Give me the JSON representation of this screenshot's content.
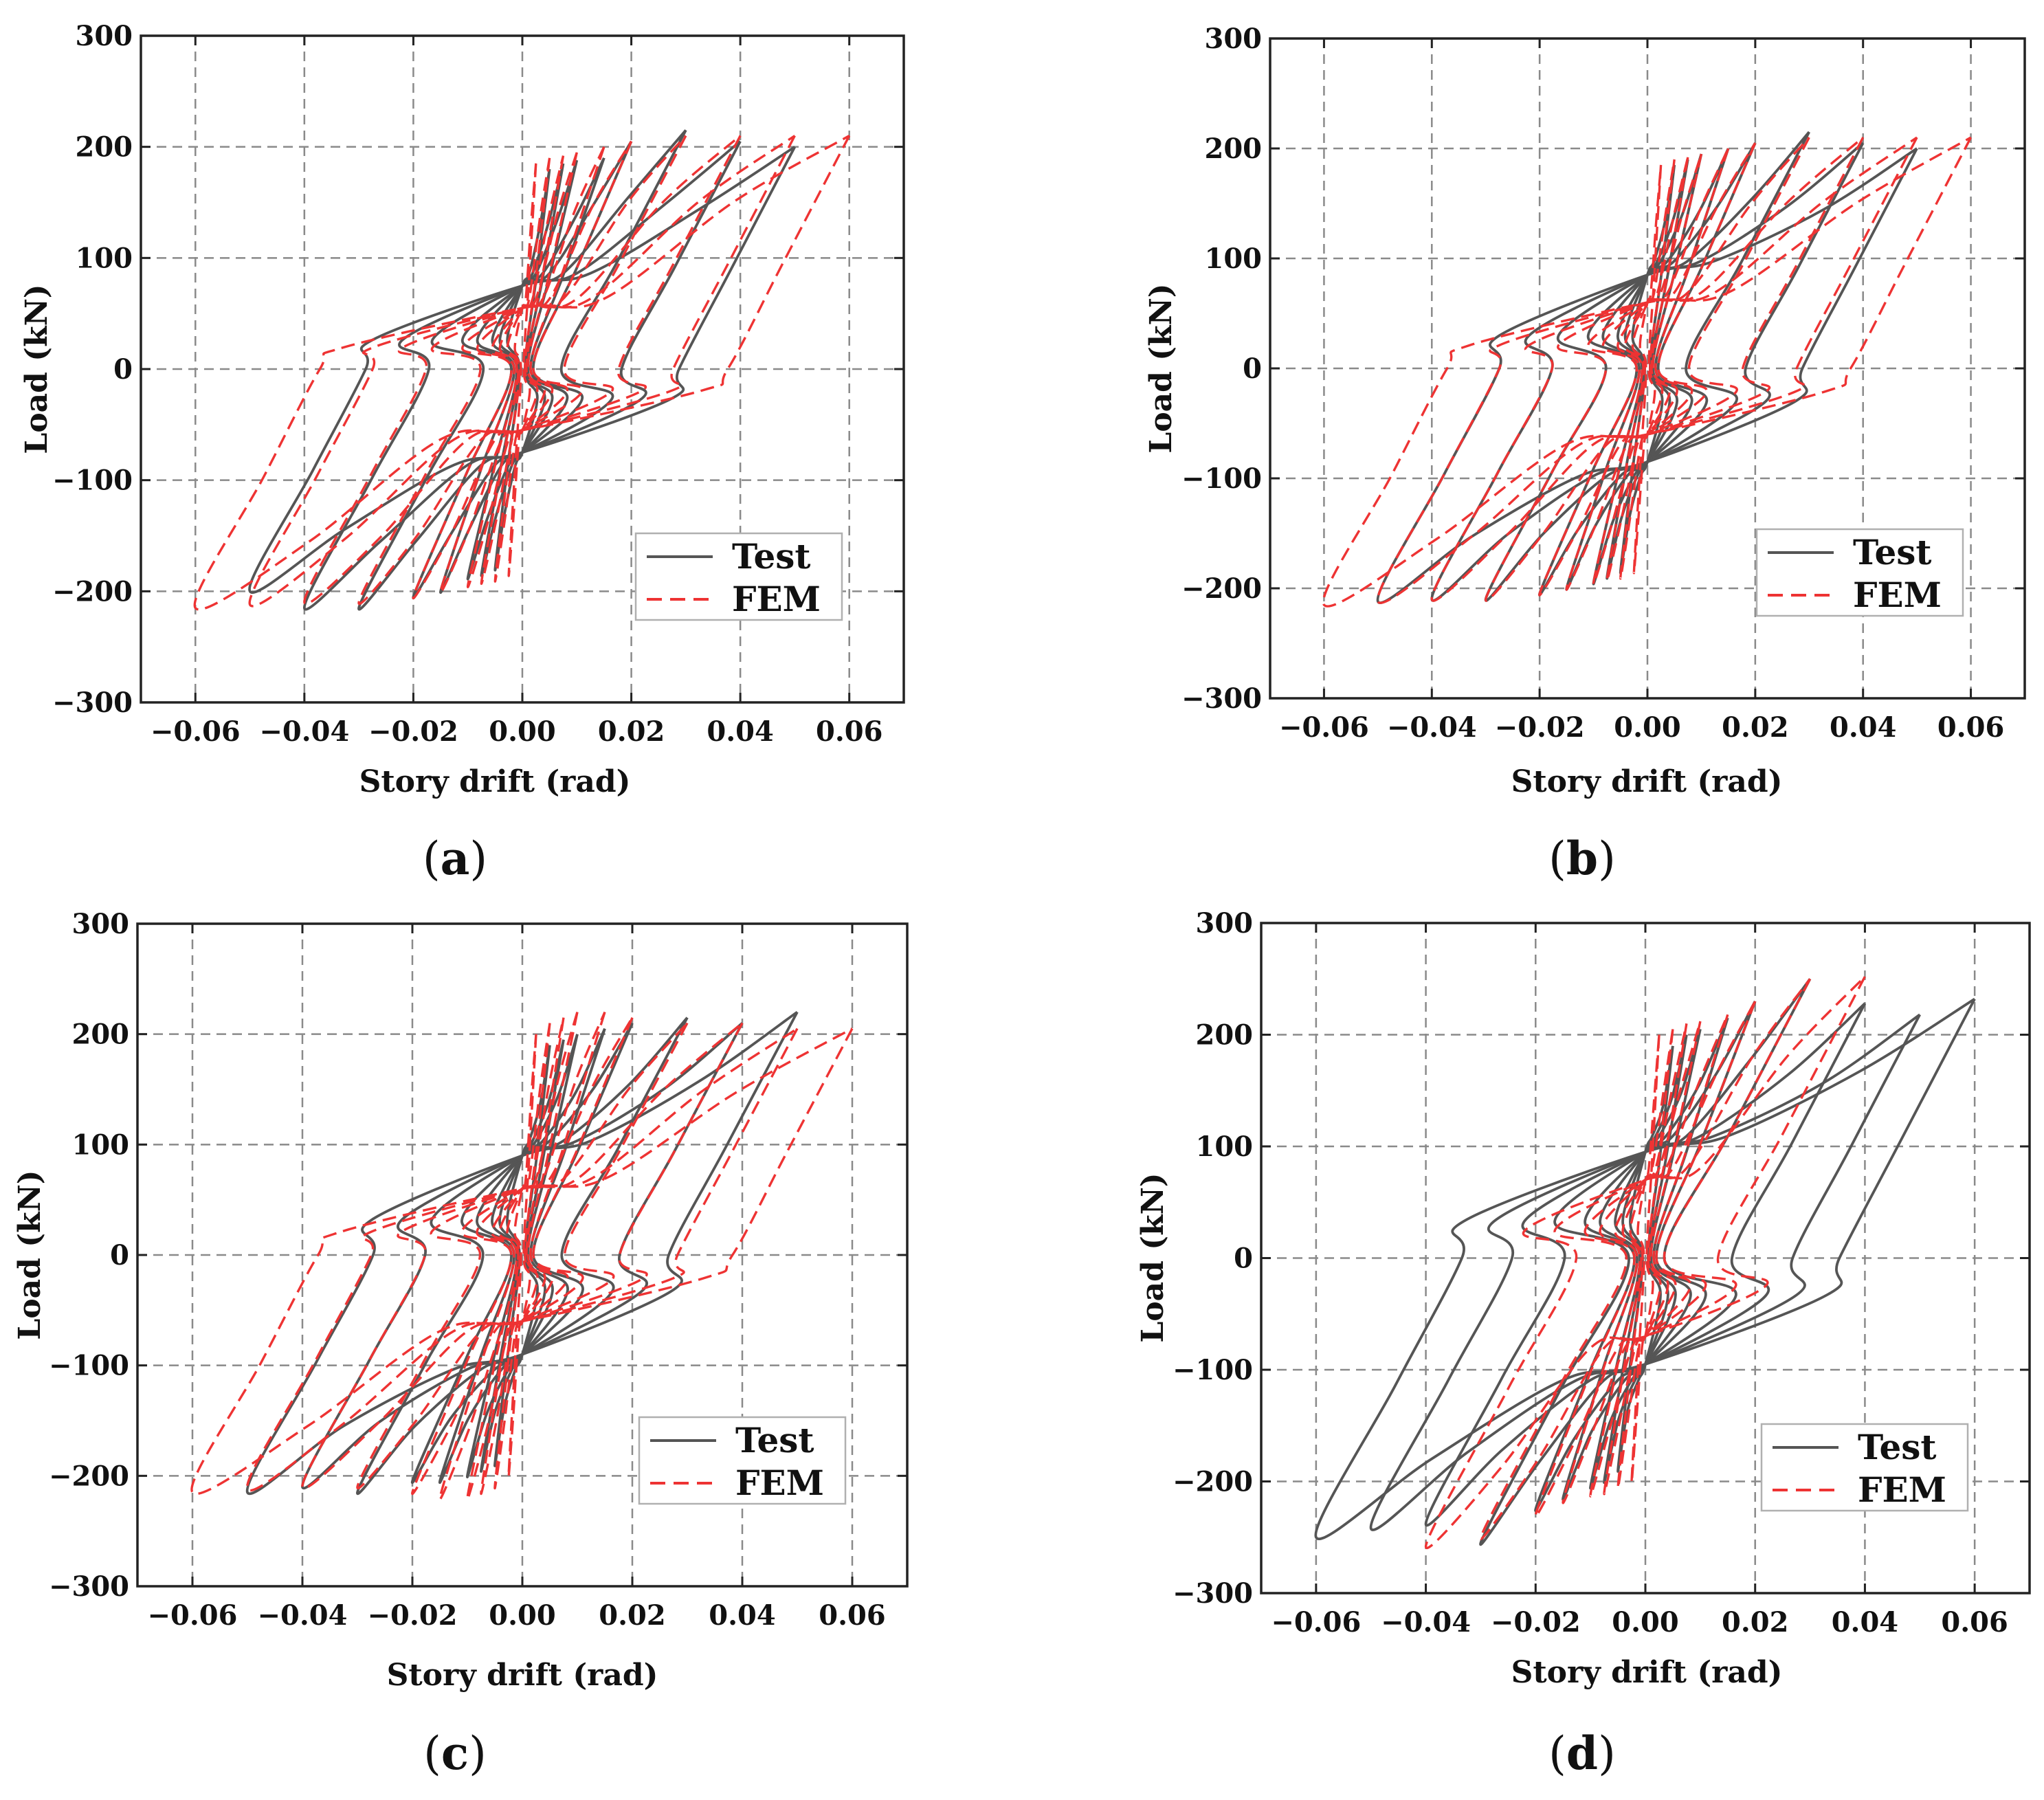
{
  "figure_note": "Load vs story drift hysteresis curves, test vs FEM",
  "colors": {
    "test": "#555555",
    "fem": "#ee3333"
  },
  "chart_data": [
    {
      "id": "a",
      "panel_label": "a",
      "type": "line",
      "xlabel": "Story drift (rad)",
      "ylabel": "Load (kN)",
      "xlim": [
        -0.07,
        0.07
      ],
      "ylim": [
        -300,
        300
      ],
      "xticks": [
        -0.06,
        -0.04,
        -0.02,
        0.0,
        0.02,
        0.04,
        0.06
      ],
      "xtick_labels": [
        "−0.06",
        "−0.04",
        "−0.02",
        "0.00",
        "0.02",
        "0.04",
        "0.06"
      ],
      "yticks": [
        300,
        200,
        100,
        0,
        -100,
        -200,
        -300
      ],
      "ytick_labels": [
        "300",
        "200",
        "100",
        "0",
        "−100",
        "−200",
        "−300"
      ],
      "grid": true,
      "legend_position": "bottom-right",
      "series": [
        {
          "name": "Test",
          "style": "solid",
          "peak_drifts": [
            0.005,
            0.0075,
            0.01,
            0.015,
            0.02,
            0.03,
            0.04,
            0.05
          ],
          "peak_loads": [
            180,
            185,
            188,
            190,
            205,
            215,
            205,
            200
          ],
          "neg_peak_loads": [
            -180,
            -185,
            -188,
            -200,
            -205,
            -215,
            -215,
            -200
          ],
          "pinch_load": 75,
          "elastic_slope": 8000
        },
        {
          "name": "FEM",
          "style": "dashed",
          "peak_drifts": [
            0.0025,
            0.005,
            0.0075,
            0.01,
            0.015,
            0.02,
            0.03,
            0.04,
            0.05,
            0.06
          ],
          "peak_loads": [
            185,
            190,
            192,
            195,
            200,
            205,
            210,
            210,
            210,
            210
          ],
          "neg_peak_loads": [
            -185,
            -190,
            -192,
            -195,
            -200,
            -205,
            -210,
            -210,
            -212,
            -215
          ],
          "pinch_load": 55,
          "elastic_slope": 8000
        }
      ]
    },
    {
      "id": "b",
      "panel_label": "b",
      "type": "line",
      "xlabel": "Story drift (rad)",
      "ylabel": "Load (kN)",
      "xlim": [
        -0.07,
        0.07
      ],
      "ylim": [
        -300,
        300
      ],
      "xticks": [
        -0.06,
        -0.04,
        -0.02,
        0.0,
        0.02,
        0.04,
        0.06
      ],
      "xtick_labels": [
        "−0.06",
        "−0.04",
        "−0.02",
        "0.00",
        "0.02",
        "0.04",
        "0.06"
      ],
      "yticks": [
        300,
        200,
        100,
        0,
        -100,
        -200,
        -300
      ],
      "ytick_labels": [
        "300",
        "200",
        "100",
        "0",
        "−100",
        "−200",
        "−300"
      ],
      "grid": true,
      "legend_position": "bottom-right",
      "series": [
        {
          "name": "Test",
          "style": "solid",
          "peak_drifts": [
            0.005,
            0.0075,
            0.01,
            0.015,
            0.02,
            0.03,
            0.04,
            0.05
          ],
          "peak_loads": [
            185,
            190,
            195,
            200,
            205,
            215,
            205,
            200
          ],
          "neg_peak_loads": [
            -185,
            -190,
            -195,
            -200,
            -205,
            -210,
            -210,
            -212
          ],
          "pinch_load": 85,
          "elastic_slope": 8000
        },
        {
          "name": "FEM",
          "style": "dashed",
          "peak_drifts": [
            0.0025,
            0.005,
            0.0075,
            0.01,
            0.015,
            0.02,
            0.03,
            0.04,
            0.05,
            0.06
          ],
          "peak_loads": [
            185,
            190,
            192,
            195,
            200,
            205,
            210,
            210,
            210,
            210
          ],
          "neg_peak_loads": [
            -185,
            -190,
            -192,
            -195,
            -200,
            -205,
            -210,
            -210,
            -212,
            -215
          ],
          "pinch_load": 60,
          "elastic_slope": 8000
        }
      ]
    },
    {
      "id": "c",
      "panel_label": "c",
      "type": "line",
      "xlabel": "Story drift (rad)",
      "ylabel": "Load (kN)",
      "xlim": [
        -0.07,
        0.07
      ],
      "ylim": [
        -300,
        300
      ],
      "xticks": [
        -0.06,
        -0.04,
        -0.02,
        0.0,
        0.02,
        0.04,
        0.06
      ],
      "xtick_labels": [
        "−0.06",
        "−0.04",
        "−0.02",
        "0.00",
        "0.02",
        "0.04",
        "0.06"
      ],
      "yticks": [
        300,
        200,
        100,
        0,
        -100,
        -200,
        -300
      ],
      "ytick_labels": [
        "300",
        "200",
        "100",
        "0",
        "−100",
        "−200",
        "−300"
      ],
      "grid": true,
      "legend_position": "bottom-right",
      "series": [
        {
          "name": "Test",
          "style": "solid",
          "peak_drifts": [
            0.005,
            0.0075,
            0.01,
            0.015,
            0.02,
            0.03,
            0.04,
            0.05
          ],
          "peak_loads": [
            190,
            195,
            200,
            205,
            210,
            215,
            210,
            220
          ],
          "neg_peak_loads": [
            -190,
            -195,
            -200,
            -205,
            -205,
            -215,
            -210,
            -215
          ],
          "pinch_load": 90,
          "elastic_slope": 8000
        },
        {
          "name": "FEM",
          "style": "dashed",
          "peak_drifts": [
            0.0025,
            0.005,
            0.0075,
            0.01,
            0.015,
            0.02,
            0.03,
            0.04,
            0.05,
            0.06
          ],
          "peak_loads": [
            200,
            210,
            215,
            220,
            220,
            215,
            210,
            210,
            205,
            205
          ],
          "neg_peak_loads": [
            -200,
            -210,
            -215,
            -220,
            -220,
            -215,
            -210,
            -210,
            -212,
            -215
          ],
          "pinch_load": 60,
          "elastic_slope": 8000
        }
      ]
    },
    {
      "id": "d",
      "panel_label": "d",
      "type": "line",
      "xlabel": "Story drift (rad)",
      "ylabel": "Load (kN)",
      "xlim": [
        -0.07,
        0.07
      ],
      "ylim": [
        -300,
        300
      ],
      "xticks": [
        -0.06,
        -0.04,
        -0.02,
        0.0,
        0.02,
        0.04,
        0.06
      ],
      "xtick_labels": [
        "−0.06",
        "−0.04",
        "−0.02",
        "0.00",
        "0.02",
        "0.04",
        "0.06"
      ],
      "yticks": [
        300,
        200,
        100,
        0,
        -100,
        -200,
        -300
      ],
      "ytick_labels": [
        "300",
        "200",
        "100",
        "0",
        "−100",
        "−200",
        "−300"
      ],
      "grid": true,
      "legend_position": "bottom-right",
      "series": [
        {
          "name": "Test",
          "style": "solid",
          "peak_drifts": [
            0.005,
            0.0075,
            0.01,
            0.015,
            0.02,
            0.03,
            0.04,
            0.05,
            0.06
          ],
          "peak_loads": [
            190,
            200,
            205,
            215,
            230,
            250,
            228,
            218,
            232
          ],
          "neg_peak_loads": [
            -190,
            -200,
            -205,
            -215,
            -225,
            -255,
            -238,
            -242,
            -250
          ],
          "pinch_load": 95,
          "elastic_slope": 8000
        },
        {
          "name": "FEM",
          "style": "dashed",
          "peak_drifts": [
            0.0025,
            0.005,
            0.0075,
            0.01,
            0.015,
            0.02,
            0.03,
            0.04
          ],
          "peak_loads": [
            200,
            205,
            210,
            212,
            218,
            230,
            250,
            252
          ],
          "neg_peak_loads": [
            -200,
            -205,
            -210,
            -212,
            -218,
            -230,
            -250,
            -258
          ],
          "pinch_load": 70,
          "elastic_slope": 8000
        }
      ]
    }
  ]
}
